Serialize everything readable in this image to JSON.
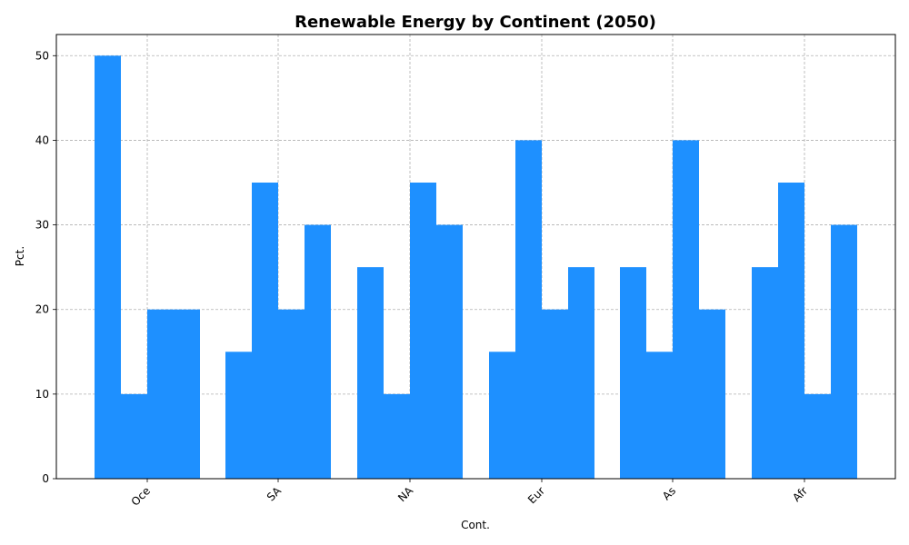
{
  "chart_data": {
    "type": "bar",
    "title": "Renewable Energy by Continent (2050)",
    "xlabel": "Cont.",
    "ylabel": "Pct.",
    "categories": [
      "Oce",
      "SA",
      "NA",
      "Eur",
      "As",
      "Afr"
    ],
    "series": [
      {
        "values": [
          50,
          15,
          25,
          15,
          25,
          25
        ]
      },
      {
        "values": [
          10,
          35,
          10,
          40,
          15,
          35
        ]
      },
      {
        "values": [
          20,
          20,
          35,
          20,
          40,
          10
        ]
      },
      {
        "values": [
          20,
          30,
          30,
          25,
          20,
          30
        ]
      }
    ],
    "ylim": [
      0,
      52.5
    ],
    "yticks": [
      0,
      10,
      20,
      30,
      40,
      50
    ],
    "grid": true,
    "color": "#1e90ff"
  }
}
